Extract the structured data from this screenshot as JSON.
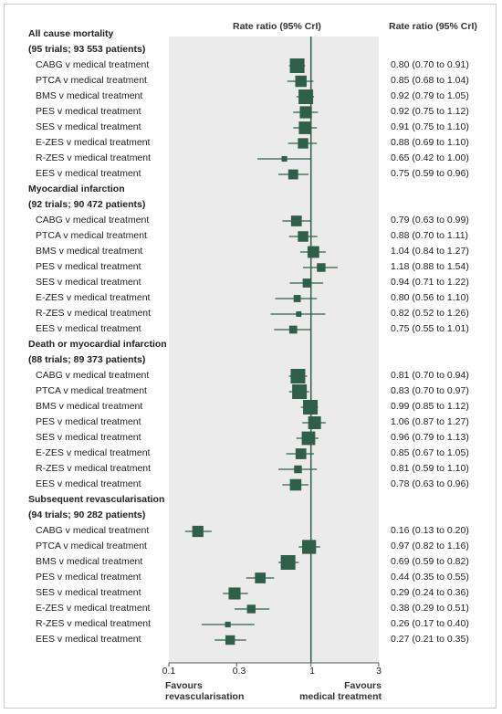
{
  "chart_data": {
    "type": "forest",
    "plot_header": "Rate ratio (95% CrI)",
    "value_header": "Rate ratio (95% CrI)",
    "x_scale": "log",
    "xlim": [
      0.1,
      3
    ],
    "x_ticks": [
      {
        "value": 0.1,
        "label": "0.1"
      },
      {
        "value": 0.3,
        "label": "0.3"
      },
      {
        "value": 1,
        "label": "1"
      },
      {
        "value": 3,
        "label": "3"
      }
    ],
    "reference_line": 1,
    "favours_left": [
      "Favours",
      "revascularisation"
    ],
    "favours_right": [
      "Favours",
      "medical treatment"
    ],
    "colors": {
      "marker": "#2f5f4a",
      "reference_line": "#2f5f4a",
      "panel": "#ebebeb"
    },
    "groups": [
      {
        "title": "All cause mortality",
        "subtitle": "(95 trials; 93 553 patients)",
        "rows": [
          {
            "label": "CABG v medical treatment",
            "estimate": 0.8,
            "lower": 0.7,
            "upper": 0.91,
            "text": "0.80 (0.70 to 0.91)"
          },
          {
            "label": "PTCA v medical treatment",
            "estimate": 0.85,
            "lower": 0.68,
            "upper": 1.04,
            "text": "0.85 (0.68 to 1.04)"
          },
          {
            "label": "BMS v medical treatment",
            "estimate": 0.92,
            "lower": 0.79,
            "upper": 1.05,
            "text": "0.92 (0.79 to 1.05)"
          },
          {
            "label": "PES v medical treatment",
            "estimate": 0.92,
            "lower": 0.75,
            "upper": 1.12,
            "text": "0.92 (0.75 to 1.12)"
          },
          {
            "label": "SES v medical treatment",
            "estimate": 0.91,
            "lower": 0.75,
            "upper": 1.1,
            "text": "0.91 (0.75 to 1.10)"
          },
          {
            "label": "E-ZES v medical treatment",
            "estimate": 0.88,
            "lower": 0.69,
            "upper": 1.1,
            "text": "0.88 (0.69 to 1.10)"
          },
          {
            "label": "R-ZES v medical treatment",
            "estimate": 0.65,
            "lower": 0.42,
            "upper": 1.0,
            "text": "0.65 (0.42 to 1.00)"
          },
          {
            "label": "EES v medical treatment",
            "estimate": 0.75,
            "lower": 0.59,
            "upper": 0.96,
            "text": "0.75 (0.59 to 0.96)"
          }
        ]
      },
      {
        "title": "Myocardial infarction",
        "subtitle": "(92 trials; 90 472 patients)",
        "rows": [
          {
            "label": "CABG v medical treatment",
            "estimate": 0.79,
            "lower": 0.63,
            "upper": 0.99,
            "text": "0.79 (0.63 to 0.99)"
          },
          {
            "label": "PTCA v medical treatment",
            "estimate": 0.88,
            "lower": 0.7,
            "upper": 1.11,
            "text": "0.88 (0.70 to 1.11)"
          },
          {
            "label": "BMS v medical treatment",
            "estimate": 1.04,
            "lower": 0.84,
            "upper": 1.27,
            "text": "1.04 (0.84 to 1.27)"
          },
          {
            "label": "PES v medical treatment",
            "estimate": 1.18,
            "lower": 0.88,
            "upper": 1.54,
            "text": "1.18 (0.88 to 1.54)"
          },
          {
            "label": "SES v medical treatment",
            "estimate": 0.94,
            "lower": 0.71,
            "upper": 1.22,
            "text": "0.94 (0.71 to 1.22)"
          },
          {
            "label": "E-ZES v medical treatment",
            "estimate": 0.8,
            "lower": 0.56,
            "upper": 1.1,
            "text": "0.80 (0.56 to 1.10)"
          },
          {
            "label": "R-ZES v medical treatment",
            "estimate": 0.82,
            "lower": 0.52,
            "upper": 1.26,
            "text": "0.82 (0.52 to 1.26)"
          },
          {
            "label": "EES v medical treatment",
            "estimate": 0.75,
            "lower": 0.55,
            "upper": 1.01,
            "text": "0.75 (0.55 to 1.01)"
          }
        ]
      },
      {
        "title": "Death or myocardial infarction",
        "subtitle": "(88 trials; 89 373 patients)",
        "rows": [
          {
            "label": "CABG v medical treatment",
            "estimate": 0.81,
            "lower": 0.7,
            "upper": 0.94,
            "text": "0.81 (0.70 to 0.94)"
          },
          {
            "label": "PTCA v medical treatment",
            "estimate": 0.83,
            "lower": 0.7,
            "upper": 0.97,
            "text": "0.83 (0.70 to 0.97)"
          },
          {
            "label": "BMS v medical treatment",
            "estimate": 0.99,
            "lower": 0.85,
            "upper": 1.12,
            "text": "0.99 (0.85 to 1.12)"
          },
          {
            "label": "PES v medical treatment",
            "estimate": 1.06,
            "lower": 0.87,
            "upper": 1.27,
            "text": "1.06 (0.87 to 1.27)"
          },
          {
            "label": "SES v medical treatment",
            "estimate": 0.96,
            "lower": 0.79,
            "upper": 1.13,
            "text": "0.96 (0.79 to 1.13)"
          },
          {
            "label": "E-ZES v medical treatment",
            "estimate": 0.85,
            "lower": 0.67,
            "upper": 1.05,
            "text": "0.85 (0.67 to 1.05)"
          },
          {
            "label": "R-ZES v medical treatment",
            "estimate": 0.81,
            "lower": 0.59,
            "upper": 1.1,
            "text": "0.81 (0.59 to 1.10)"
          },
          {
            "label": "EES v medical treatment",
            "estimate": 0.78,
            "lower": 0.63,
            "upper": 0.96,
            "text": "0.78 (0.63 to 0.96)"
          }
        ]
      },
      {
        "title": "Subsequent revascularisation",
        "subtitle": "(94 trials; 90 282 patients)",
        "rows": [
          {
            "label": "CABG v medical treatment",
            "estimate": 0.16,
            "lower": 0.13,
            "upper": 0.2,
            "text": "0.16 (0.13 to 0.20)"
          },
          {
            "label": "PTCA v medical treatment",
            "estimate": 0.97,
            "lower": 0.82,
            "upper": 1.16,
            "text": "0.97 (0.82 to 1.16)"
          },
          {
            "label": "BMS v medical treatment",
            "estimate": 0.69,
            "lower": 0.59,
            "upper": 0.82,
            "text": "0.69 (0.59 to 0.82)"
          },
          {
            "label": "PES v medical treatment",
            "estimate": 0.44,
            "lower": 0.35,
            "upper": 0.55,
            "text": "0.44 (0.35 to 0.55)"
          },
          {
            "label": "SES v medical treatment",
            "estimate": 0.29,
            "lower": 0.24,
            "upper": 0.36,
            "text": "0.29 (0.24 to 0.36)"
          },
          {
            "label": "E-ZES v medical treatment",
            "estimate": 0.38,
            "lower": 0.29,
            "upper": 0.51,
            "text": "0.38 (0.29 to 0.51)"
          },
          {
            "label": "R-ZES v medical treatment",
            "estimate": 0.26,
            "lower": 0.17,
            "upper": 0.4,
            "text": "0.26 (0.17 to 0.40)"
          },
          {
            "label": "EES v medical treatment",
            "estimate": 0.27,
            "lower": 0.21,
            "upper": 0.35,
            "text": "0.27 (0.21 to 0.35)"
          }
        ]
      }
    ]
  }
}
